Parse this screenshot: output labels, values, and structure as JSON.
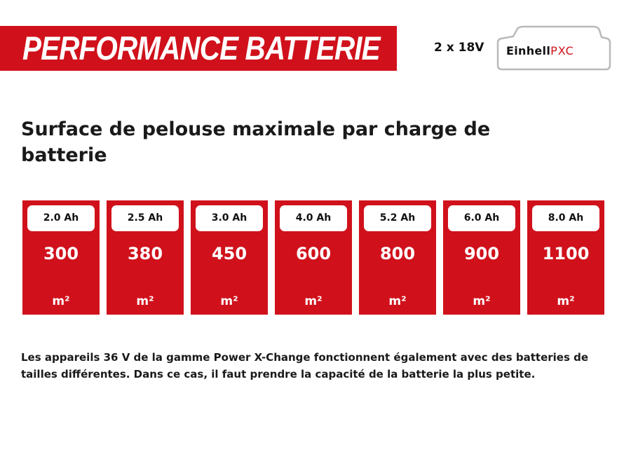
{
  "header": {
    "title": "PERFORMANCE BATTERIE",
    "voltage": "2 x 18V",
    "logo": {
      "brand": "Einhell",
      "system": "PXC",
      "icon": "battery-pack-logo"
    }
  },
  "heading": "Surface de pelouse maximale par charge de batterie",
  "capacities": [
    {
      "capacity": "2.0 Ah",
      "value": "300",
      "unit": "m²"
    },
    {
      "capacity": "2.5 Ah",
      "value": "380",
      "unit": "m²"
    },
    {
      "capacity": "3.0 Ah",
      "value": "450",
      "unit": "m²"
    },
    {
      "capacity": "4.0 Ah",
      "value": "600",
      "unit": "m²"
    },
    {
      "capacity": "5.2 Ah",
      "value": "800",
      "unit": "m²"
    },
    {
      "capacity": "6.0 Ah",
      "value": "900",
      "unit": "m²"
    },
    {
      "capacity": "8.0 Ah",
      "value": "1100",
      "unit": "m²"
    }
  ],
  "note": "Les appareils 36 V de la gamme Power X-Change fonctionnent également avec des batteries de tailles différentes. Dans ce cas, il faut prendre la capacité de la batterie la plus petite.",
  "colors": {
    "accent": "#d0111b",
    "text": "#1a1a1a",
    "background": "#ffffff"
  }
}
